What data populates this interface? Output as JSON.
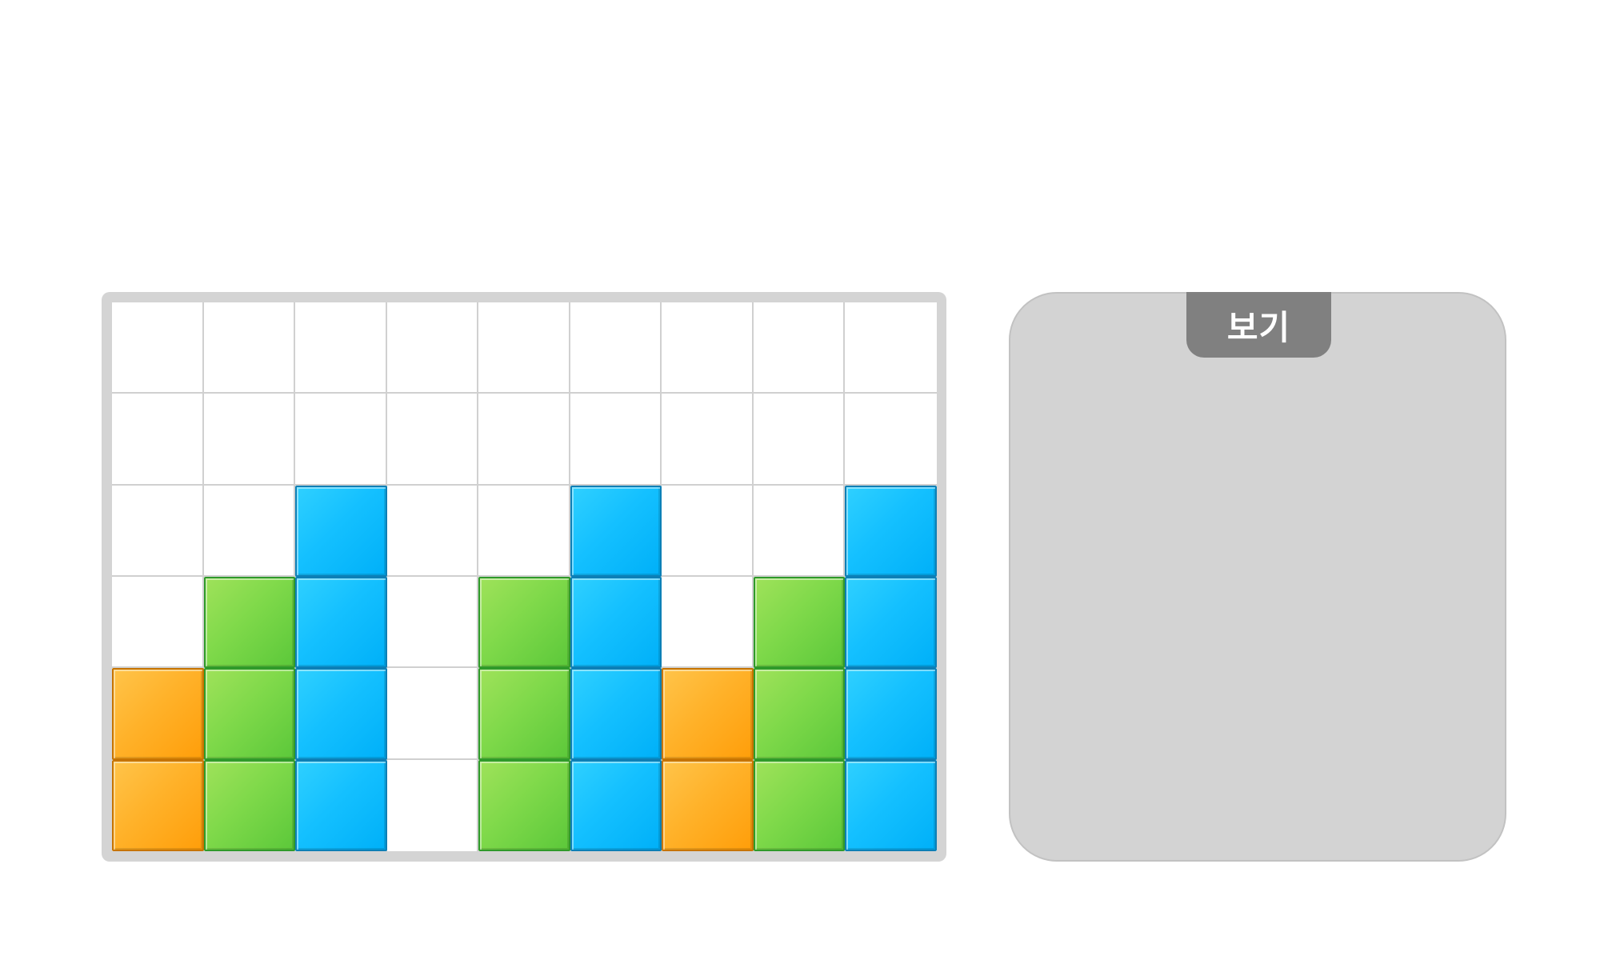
{
  "example_panel": {
    "tab_label": "보기"
  },
  "grid": {
    "columns": 9,
    "rows": 6,
    "column_stacks": [
      [
        "orange",
        "orange"
      ],
      [
        "green",
        "green",
        "green"
      ],
      [
        "blue",
        "blue",
        "blue",
        "blue"
      ],
      [],
      [
        "green",
        "green",
        "green"
      ],
      [
        "blue",
        "blue",
        "blue",
        "blue"
      ],
      [
        "orange",
        "orange"
      ],
      [
        "green",
        "green",
        "green"
      ],
      [
        "blue",
        "blue",
        "blue",
        "blue"
      ]
    ]
  },
  "colors": {
    "orange": "#FFB22A",
    "green": "#7FD94A",
    "blue": "#14C0FF",
    "board_frame": "#D4D4D4",
    "panel_background": "#D3D3D3",
    "tab_background": "#808080"
  }
}
